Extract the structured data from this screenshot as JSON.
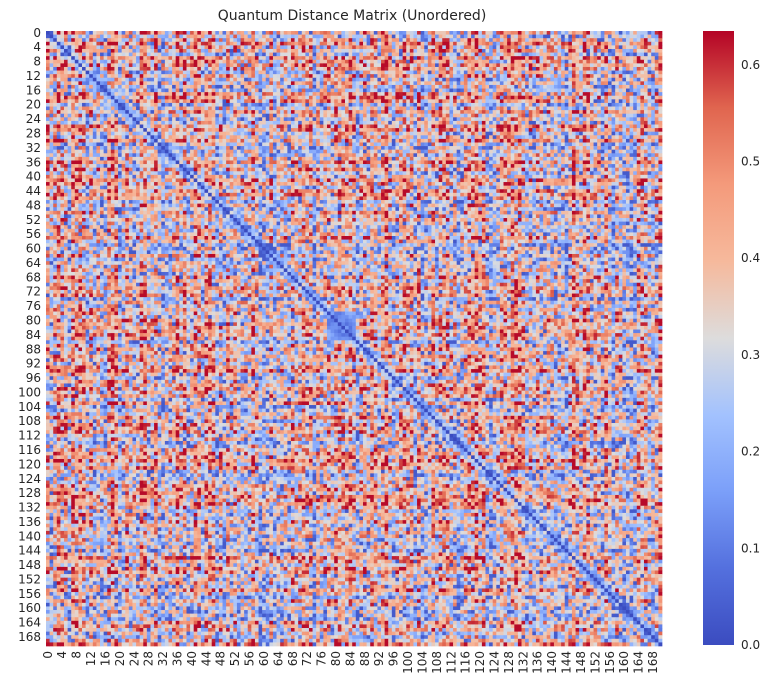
{
  "chart_data": {
    "type": "heatmap",
    "title": "Quantum Distance Matrix (Unordered)",
    "xlabel": "",
    "ylabel": "",
    "n": 171,
    "tick_step": 4,
    "tick_labels": [
      "0",
      "4",
      "8",
      "12",
      "16",
      "20",
      "24",
      "28",
      "32",
      "36",
      "40",
      "44",
      "48",
      "52",
      "56",
      "60",
      "64",
      "68",
      "72",
      "76",
      "80",
      "84",
      "88",
      "92",
      "96",
      "100",
      "104",
      "108",
      "112",
      "116",
      "120",
      "124",
      "128",
      "132",
      "136",
      "140",
      "144",
      "148",
      "152",
      "156",
      "160",
      "164",
      "168"
    ],
    "colorbar": {
      "range": [
        0.0,
        0.635
      ],
      "ticks": [
        "0.0",
        "0.1",
        "0.2",
        "0.3",
        "0.4",
        "0.5",
        "0.6"
      ],
      "tick_values": [
        0.0,
        0.1,
        0.2,
        0.3,
        0.4,
        0.5,
        0.6
      ]
    },
    "colormap": "coolwarm",
    "diagonal_value": 0.0,
    "typical_offdiag_range": [
      0.15,
      0.6
    ],
    "grid": false,
    "legend": "colorbar-right"
  }
}
